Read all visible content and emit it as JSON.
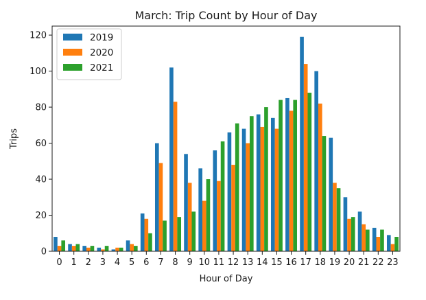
{
  "chart_data": {
    "type": "bar",
    "title": "March:  Trip Count by Hour of Day",
    "xlabel": "Hour of Day",
    "ylabel": "Trips",
    "categories": [
      "0",
      "1",
      "2",
      "3",
      "4",
      "5",
      "6",
      "7",
      "8",
      "9",
      "10",
      "11",
      "12",
      "13",
      "14",
      "15",
      "16",
      "17",
      "18",
      "19",
      "20",
      "21",
      "22",
      "23"
    ],
    "ylim": [
      0,
      125
    ],
    "yticks": [
      0,
      20,
      40,
      60,
      80,
      100,
      120
    ],
    "grid": false,
    "legend_position": "top-left",
    "series": [
      {
        "name": "2019",
        "color": "#1f77b4",
        "values": [
          8,
          4,
          3,
          2,
          1,
          6,
          21,
          60,
          102,
          54,
          46,
          56,
          66,
          68,
          76,
          74,
          85,
          119,
          100,
          63,
          30,
          22,
          13,
          9
        ]
      },
      {
        "name": "2020",
        "color": "#ff7f0e",
        "values": [
          3,
          3,
          2,
          1,
          2,
          4,
          18,
          49,
          83,
          38,
          28,
          39,
          48,
          60,
          69,
          68,
          78,
          104,
          82,
          38,
          18,
          15,
          8,
          4
        ]
      },
      {
        "name": "2021",
        "color": "#2ca02c",
        "values": [
          6,
          4,
          3,
          3,
          2,
          3,
          10,
          17,
          19,
          22,
          40,
          61,
          71,
          75,
          80,
          84,
          84,
          88,
          64,
          35,
          19,
          12,
          12,
          8
        ]
      }
    ]
  }
}
